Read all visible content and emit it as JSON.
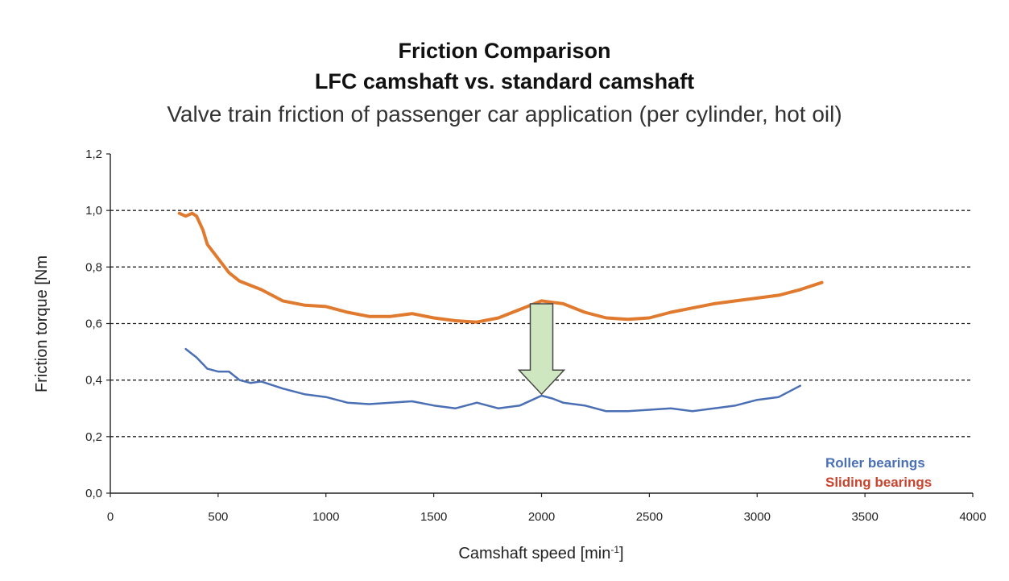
{
  "chart_data": {
    "type": "line",
    "title": "Friction Comparison",
    "subtitle": "LFC camshaft vs. standard camshaft",
    "description": "Valve train friction of  passenger car application (per cylinder, hot oil)",
    "xlabel": "Camshaft speed [min",
    "xlabel_sup": "-1",
    "xlabel_end": "]",
    "ylabel": "Friction torque [Nm",
    "xlim": [
      0,
      4000
    ],
    "ylim": [
      0,
      1.2
    ],
    "x_ticks": [
      "0",
      "500",
      "1000",
      "1500",
      "2000",
      "2500",
      "3000",
      "3500",
      "4000"
    ],
    "y_ticks": [
      "0,0",
      "0,2",
      "0,4",
      "0,6",
      "0,8",
      "1,0",
      "1,2"
    ],
    "grid": "horizontal dashed",
    "legend_position": "bottom-right",
    "series": [
      {
        "name": "Roller bearings",
        "color": "#4a6fb5",
        "x": [
          350,
          400,
          450,
          500,
          550,
          600,
          650,
          700,
          800,
          900,
          1000,
          1100,
          1200,
          1300,
          1400,
          1500,
          1600,
          1700,
          1800,
          1900,
          2000,
          2050,
          2100,
          2200,
          2300,
          2400,
          2500,
          2600,
          2700,
          2800,
          2900,
          3000,
          3100,
          3150,
          3200
        ],
        "values": [
          0.51,
          0.48,
          0.44,
          0.43,
          0.43,
          0.4,
          0.39,
          0.395,
          0.37,
          0.35,
          0.34,
          0.32,
          0.315,
          0.32,
          0.325,
          0.31,
          0.3,
          0.32,
          0.3,
          0.31,
          0.345,
          0.335,
          0.32,
          0.31,
          0.29,
          0.29,
          0.295,
          0.3,
          0.29,
          0.3,
          0.31,
          0.33,
          0.34,
          0.36,
          0.38
        ]
      },
      {
        "name": "Sliding bearings",
        "color": "#e07a2e",
        "x": [
          320,
          350,
          380,
          400,
          430,
          450,
          500,
          550,
          600,
          700,
          800,
          900,
          1000,
          1100,
          1200,
          1300,
          1400,
          1500,
          1600,
          1700,
          1800,
          1900,
          2000,
          2050,
          2100,
          2200,
          2300,
          2400,
          2500,
          2600,
          2700,
          2800,
          2900,
          3000,
          3100,
          3200,
          3300
        ],
        "values": [
          0.99,
          0.98,
          0.99,
          0.98,
          0.93,
          0.88,
          0.83,
          0.78,
          0.75,
          0.72,
          0.68,
          0.665,
          0.66,
          0.64,
          0.625,
          0.625,
          0.635,
          0.62,
          0.61,
          0.605,
          0.62,
          0.65,
          0.68,
          0.675,
          0.67,
          0.64,
          0.62,
          0.615,
          0.62,
          0.64,
          0.655,
          0.67,
          0.68,
          0.69,
          0.7,
          0.72,
          0.745
        ]
      }
    ],
    "annotation": {
      "type": "arrow-down",
      "x": 2000,
      "from": 0.67,
      "to": 0.35,
      "fill": "#cfe7c0",
      "stroke": "#444444"
    }
  }
}
